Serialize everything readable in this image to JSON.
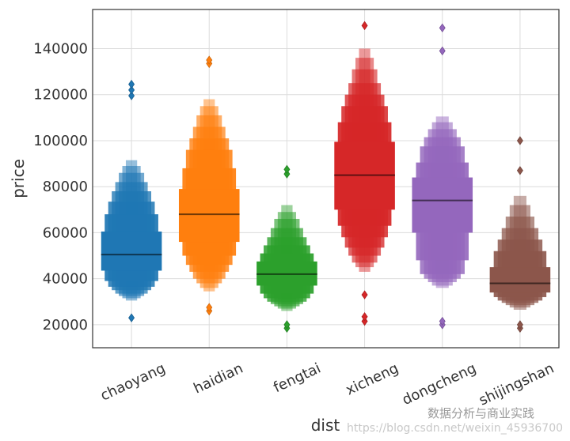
{
  "chart_data": {
    "type": "boxen",
    "title": "",
    "xlabel": "dist",
    "ylabel": "price",
    "ylim": [
      10000,
      157000
    ],
    "yticks": [
      20000,
      40000,
      60000,
      80000,
      100000,
      120000,
      140000
    ],
    "ytick_labels": [
      "20000",
      "40000",
      "60000",
      "80000",
      "100000",
      "120000",
      "140000"
    ],
    "grid": true,
    "categories": [
      "chaoyang",
      "haidian",
      "fengtai",
      "xicheng",
      "dongcheng",
      "shijingshan"
    ],
    "series": [
      {
        "name": "chaoyang",
        "color": "#1f77b4",
        "median": 50500,
        "levels": [
          [
            43500,
            60500
          ],
          [
            39000,
            68000
          ],
          [
            36500,
            73500
          ],
          [
            35000,
            78000
          ],
          [
            33500,
            82000
          ],
          [
            32500,
            86000
          ],
          [
            31500,
            89000
          ],
          [
            30500,
            91500
          ]
        ],
        "outliers": [
          23000,
          119500,
          122000,
          124500
        ]
      },
      {
        "name": "haidian",
        "color": "#ff7f0e",
        "median": 68000,
        "levels": [
          [
            56000,
            79000
          ],
          [
            50000,
            88000
          ],
          [
            46000,
            96000
          ],
          [
            43000,
            101000
          ],
          [
            40000,
            106000
          ],
          [
            38000,
            111000
          ],
          [
            36000,
            115000
          ],
          [
            34500,
            118000
          ]
        ],
        "outliers": [
          26000,
          27500,
          133500,
          135000
        ]
      },
      {
        "name": "fengtai",
        "color": "#2ca02c",
        "median": 42000,
        "levels": [
          [
            37000,
            47500
          ],
          [
            33500,
            51000
          ],
          [
            31500,
            54500
          ],
          [
            30000,
            58000
          ],
          [
            29000,
            62000
          ],
          [
            28000,
            66000
          ],
          [
            27000,
            69000
          ],
          [
            26000,
            72000
          ]
        ],
        "outliers": [
          18500,
          20000,
          85500,
          87500
        ]
      },
      {
        "name": "xicheng",
        "color": "#d62728",
        "median": 85000,
        "levels": [
          [
            70000,
            99500
          ],
          [
            63000,
            108000
          ],
          [
            58000,
            115000
          ],
          [
            53500,
            120000
          ],
          [
            50000,
            125000
          ],
          [
            47000,
            131000
          ],
          [
            45000,
            136000
          ],
          [
            43000,
            140000
          ]
        ],
        "outliers": [
          21500,
          23500,
          33000,
          150000
        ]
      },
      {
        "name": "dongcheng",
        "color": "#9467bd",
        "median": 74000,
        "levels": [
          [
            60000,
            84000
          ],
          [
            48000,
            90500
          ],
          [
            42000,
            97500
          ],
          [
            40000,
            101500
          ],
          [
            38500,
            105000
          ],
          [
            37000,
            108000
          ],
          [
            36000,
            110500
          ]
        ],
        "outliers": [
          20000,
          21500,
          139000,
          149000
        ]
      },
      {
        "name": "shijingshan",
        "color": "#8c564b",
        "median": 38000,
        "levels": [
          [
            34000,
            45000
          ],
          [
            32000,
            52000
          ],
          [
            30500,
            57000
          ],
          [
            29500,
            62000
          ],
          [
            28500,
            67000
          ],
          [
            27500,
            72000
          ],
          [
            26500,
            76000
          ]
        ],
        "outliers": [
          18500,
          20000,
          87000,
          100000
        ]
      }
    ]
  },
  "watermark": {
    "brand": "数据分析与商业实践",
    "url": "https://blog.csdn.net/weixin_45936700"
  }
}
